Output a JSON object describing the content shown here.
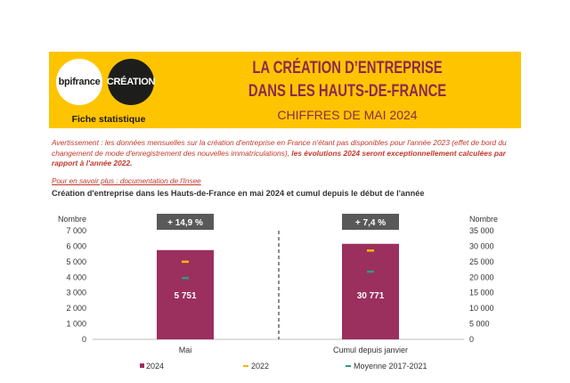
{
  "header": {
    "logo_bpi": "bpifrance",
    "logo_creation": "CRÉATION",
    "fiche": "Fiche statistique",
    "title_line1": "LA CRÉATION D’ENTREPRISE",
    "title_line2": "DANS LES HAUTS-DE-FRANCE",
    "subtitle": "CHIFFRES DE MAI 2024"
  },
  "warning": {
    "text": "Avertissement : les données mensuelles sur la création d'entreprise en France n'étant pas disponibles pour l'année 2023 (effet de bord du changement de mode d'enregistrement des nouvelles immatriculations),",
    "bold": "les évolutions 2024 seront exceptionnellement calculées par rapport à l'année 2022."
  },
  "link_text": "Pour en savoir plus : documentation de l'Insee",
  "chart_title": "Création d'entreprise dans les Hauts-de-France  en mai 2024 et cumul depuis le début de l'année",
  "colors": {
    "bar": "#9b2f5e",
    "line_2022": "#f5b800",
    "line_avg": "#2e9c7c",
    "badge": "#595959",
    "banner": "#ffc400",
    "title": "#8b2a4f"
  },
  "chart_data": {
    "type": "bar",
    "panels": [
      {
        "category": "Mai",
        "axis": "left",
        "value_2024": 5751,
        "value_label": "5 751",
        "value_2022": 5000,
        "value_avg": 3950,
        "badge": "+ 14,9 %"
      },
      {
        "category": "Cumul depuis janvier",
        "axis": "right",
        "value_2024": 30771,
        "value_label": "30 771",
        "value_2022": 28600,
        "value_avg": 21800,
        "badge": "+ 7,4 %"
      }
    ],
    "left_axis": {
      "label": "Nombre",
      "min": 0,
      "max": 7000,
      "ticks": [
        "0",
        "1 000",
        "2 000",
        "3 000",
        "4 000",
        "5 000",
        "6 000",
        "7 000"
      ]
    },
    "right_axis": {
      "label": "Nombre",
      "min": 0,
      "max": 35000,
      "ticks": [
        "0",
        "5 000",
        "10 000",
        "15 000",
        "20 000",
        "25 000",
        "30 000",
        "35 000"
      ]
    },
    "legend": [
      "2024",
      "2022",
      "Moyenne 2017-2021"
    ],
    "legend_position": "bottom"
  }
}
